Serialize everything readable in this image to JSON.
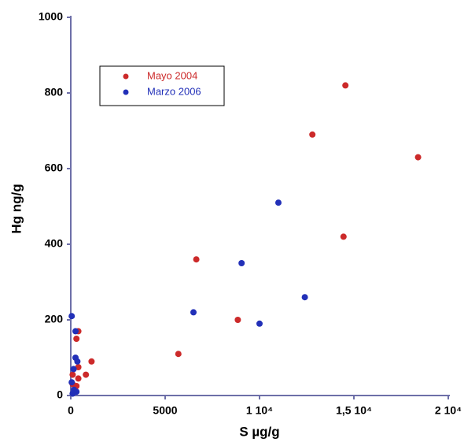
{
  "chart_data": {
    "type": "scatter",
    "x_label": "S µg/g",
    "y_label": "Hg  ng/g",
    "xlim": [
      0,
      20000
    ],
    "ylim": [
      0,
      1000
    ],
    "xticks": [
      0,
      5000,
      {
        "value": 10000,
        "label": "1 10⁴"
      },
      {
        "value": 15000,
        "label": "1,5 10⁴"
      },
      {
        "value": 20000,
        "label": "2 10⁴"
      }
    ],
    "yticks": [
      0,
      200,
      400,
      600,
      800,
      1000
    ],
    "series": [
      {
        "name": "Mayo 2004",
        "color": "#cc2a2a",
        "x": [
          14550,
          12800,
          18400,
          14450,
          6650,
          8850,
          5700,
          1100,
          800,
          400,
          400,
          300,
          300,
          400,
          100,
          100
        ],
        "values": [
          820,
          690,
          630,
          420,
          360,
          200,
          110,
          90,
          55,
          75,
          170,
          150,
          25,
          45,
          55,
          30
        ]
      },
      {
        "name": "Marzo 2006",
        "color": "#2230b8",
        "x": [
          11000,
          9050,
          6500,
          12400,
          10000,
          50,
          250,
          250,
          350,
          150,
          170,
          300,
          100,
          50
        ],
        "values": [
          510,
          350,
          220,
          260,
          190,
          210,
          170,
          100,
          90,
          70,
          15,
          10,
          5,
          35
        ]
      }
    ]
  }
}
